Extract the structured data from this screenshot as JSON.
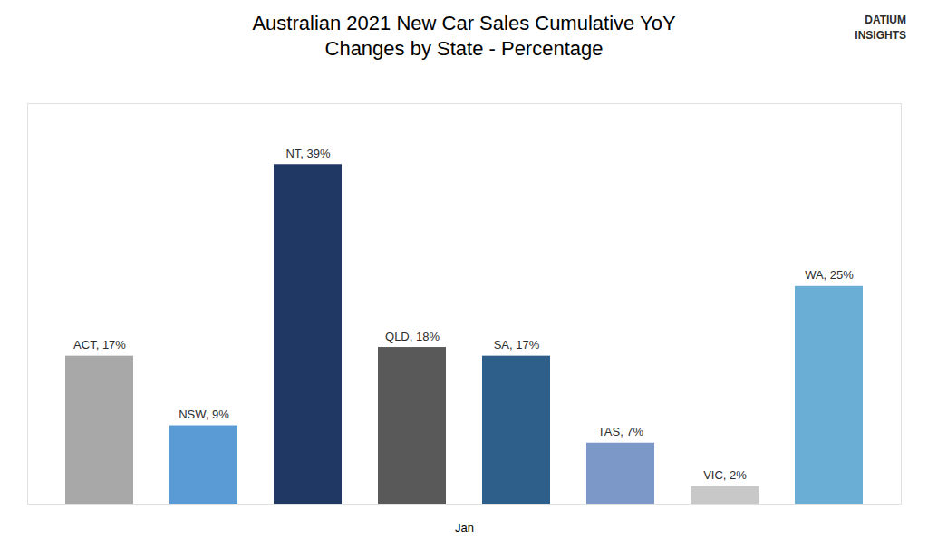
{
  "chart_data": {
    "type": "bar",
    "title": "Australian 2021 New Car Sales Cumulative YoY\nChanges by State - Percentage",
    "xlabel": "Jan",
    "categories": [
      "ACT",
      "NSW",
      "NT",
      "QLD",
      "SA",
      "TAS",
      "VIC",
      "WA"
    ],
    "values": [
      17,
      9,
      39,
      18,
      17,
      7,
      2,
      25
    ],
    "value_labels": [
      "ACT, 17%",
      "NSW, 9%",
      "NT, 39%",
      "QLD, 18%",
      "SA, 17%",
      "TAS, 7%",
      "VIC, 2%",
      "WA, 25%"
    ],
    "colors": [
      "#a8a8a8",
      "#5b9bd5",
      "#1f3864",
      "#595959",
      "#2e5f8a",
      "#7b98c9",
      "#c8c8c8",
      "#6aadd5"
    ],
    "ylim": [
      0,
      46
    ],
    "data_labels": true,
    "tick_labels": false,
    "grid": false,
    "annotations": [
      "DATIUM\nINSIGHTS"
    ]
  }
}
